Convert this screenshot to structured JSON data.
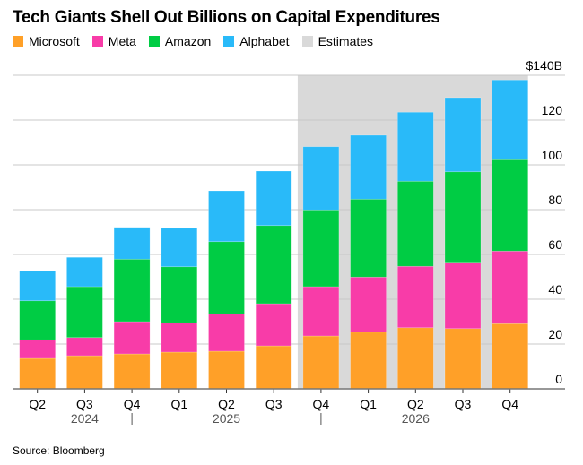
{
  "chart_data": {
    "type": "bar",
    "stacked": true,
    "title": "Tech Giants Shell Out Billions on Capital Expenditures",
    "categories": [
      "Q2",
      "Q3",
      "Q4",
      "Q1",
      "Q2",
      "Q3",
      "Q4",
      "Q1",
      "Q2",
      "Q3",
      "Q4"
    ],
    "year_labels": [
      {
        "label": "2024",
        "under": 1
      },
      {
        "label": "2025",
        "under": 4
      },
      {
        "label": "2026",
        "under": 8
      }
    ],
    "year_separators_after": [
      2,
      6
    ],
    "series": [
      {
        "name": "Microsoft",
        "color": "#ffa028",
        "values": [
          13.6,
          14.8,
          15.6,
          16.4,
          16.8,
          19.2,
          23.6,
          25.3,
          27.3,
          26.9,
          29.1
        ]
      },
      {
        "name": "Meta",
        "color": "#f83ca8",
        "values": [
          8.3,
          8.1,
          14.4,
          13.1,
          16.7,
          18.8,
          22.0,
          24.6,
          27.4,
          29.6,
          32.4
        ]
      },
      {
        "name": "Amazon",
        "color": "#00cc44",
        "values": [
          17.4,
          22.7,
          27.9,
          25.0,
          32.2,
          34.9,
          34.3,
          34.8,
          38.0,
          40.4,
          40.8
        ]
      },
      {
        "name": "Alphabet",
        "color": "#29baf9",
        "values": [
          13.4,
          13.1,
          14.2,
          17.2,
          22.7,
          24.3,
          28.2,
          28.5,
          30.8,
          33.1,
          35.6
        ]
      }
    ],
    "estimates": {
      "name": "Estimates",
      "color": "#d9d9d9",
      "from_index": 6,
      "to_index": 10
    },
    "yaxis": {
      "position": "right",
      "ticks": [
        0,
        20,
        40,
        60,
        80,
        100,
        120,
        140
      ],
      "tick_labels": [
        "0",
        "20",
        "40",
        "60",
        "80",
        "100",
        "120",
        "$140B"
      ]
    },
    "ylim": [
      0,
      140
    ],
    "grid": true,
    "legend": "top-left",
    "xlabel": "",
    "ylabel": ""
  },
  "source": "Source: Bloomberg"
}
